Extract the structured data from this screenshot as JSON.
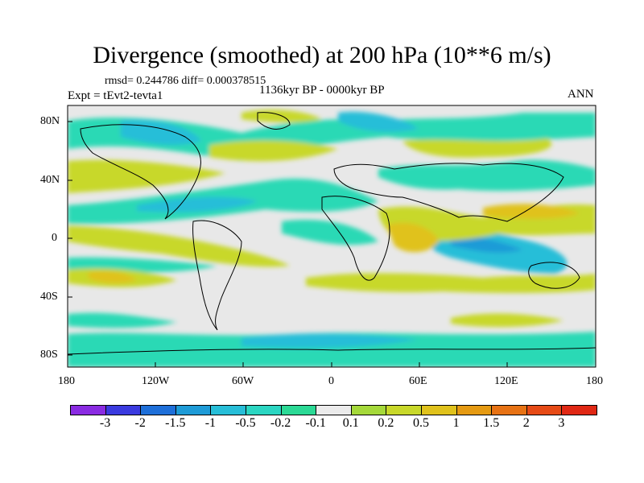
{
  "title": "Divergence (smoothed) at 200 hPa (10**6 m/s)",
  "stats": "rmsd= 0.244786 diff= 0.000378515",
  "experiment": "Expt = tEvt2-tevta1",
  "period": "1136kyr BP - 0000kyr BP",
  "season": "ANN",
  "lat_labels": [
    "80N",
    "40N",
    "0",
    "40S",
    "80S"
  ],
  "lon_labels": [
    "180",
    "120W",
    "60W",
    "0",
    "60E",
    "120E",
    "180"
  ],
  "colorbar": {
    "colors": [
      "#8a2be2",
      "#3a3adf",
      "#1e6fd9",
      "#1e9bd7",
      "#27bed8",
      "#2bd6c2",
      "#2bd995",
      "#ebebeb",
      "#a5d93a",
      "#c8d82a",
      "#e0c21c",
      "#e59a12",
      "#e77214",
      "#e64a16",
      "#e02814"
    ],
    "labels": [
      "-3",
      "-2",
      "-1.5",
      "-1",
      "-0.5",
      "-0.2",
      "-0.1",
      "0.1",
      "0.2",
      "0.5",
      "1",
      "1.5",
      "2",
      "3"
    ]
  }
}
